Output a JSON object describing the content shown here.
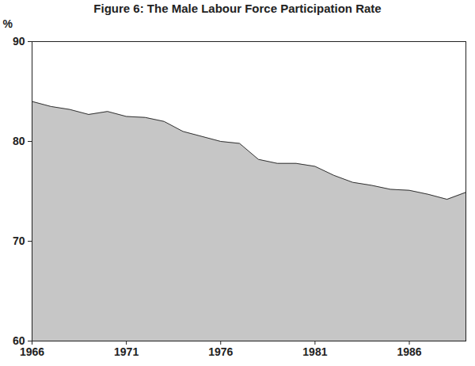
{
  "chart_data": {
    "type": "area",
    "title": "Figure 6: The Male Labour Force Participation Rate",
    "y_label": "%",
    "x": [
      1966,
      1967,
      1968,
      1969,
      1970,
      1971,
      1972,
      1973,
      1974,
      1975,
      1976,
      1977,
      1978,
      1979,
      1980,
      1981,
      1982,
      1983,
      1984,
      1985,
      1986,
      1987,
      1988,
      1989
    ],
    "values": [
      84.0,
      83.5,
      83.2,
      82.7,
      83.0,
      82.5,
      82.4,
      82.0,
      81.0,
      80.5,
      80.0,
      79.8,
      78.2,
      77.8,
      77.8,
      77.5,
      76.6,
      75.9,
      75.6,
      75.2,
      75.1,
      74.7,
      74.2,
      74.9
    ],
    "color": "#c6c6c6",
    "xlim": [
      1966,
      1989
    ],
    "xticks": [
      1966,
      1971,
      1976,
      1981,
      1986
    ],
    "ylim": [
      60,
      90
    ],
    "yticks": [
      60,
      70,
      80,
      90
    ],
    "grid": false
  }
}
